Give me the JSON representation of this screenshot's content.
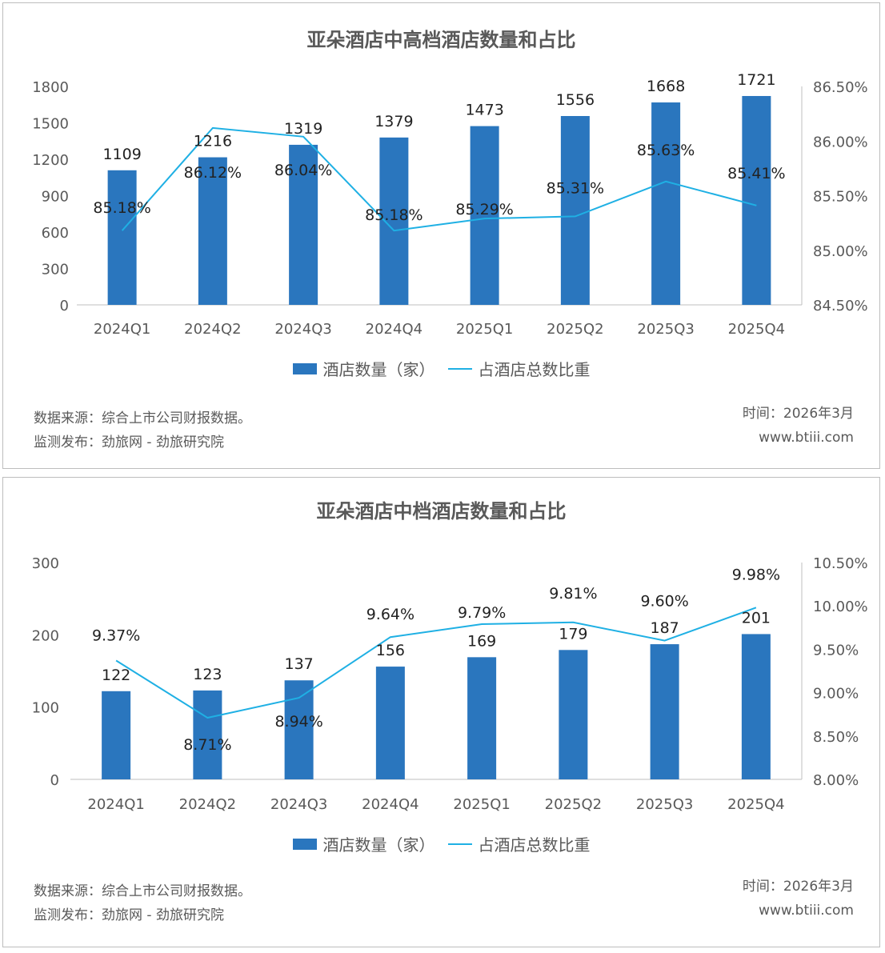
{
  "colors": {
    "bar": "#2a76be",
    "line": "#1fb0e4",
    "axis": "#bfbfbf"
  },
  "footer": {
    "source": "数据来源：综合上市公司财报数据。",
    "publisher": "监测发布：劲旅网 - 劲旅研究院",
    "time": "时间：2026年3月",
    "website": "www.btiii.com"
  },
  "chart_data": [
    {
      "type": "bar",
      "title": "亚朵酒店中高档酒店数量和占比",
      "categories": [
        "2024Q1",
        "2024Q2",
        "2024Q3",
        "2024Q4",
        "2025Q1",
        "2025Q2",
        "2025Q3",
        "2025Q4"
      ],
      "series": [
        {
          "name": "酒店数量（家）",
          "type": "bar",
          "axis": "left",
          "values": [
            1109,
            1216,
            1319,
            1379,
            1473,
            1556,
            1668,
            1721
          ],
          "labels": [
            "1109",
            "1216",
            "1319",
            "1379",
            "1473",
            "1556",
            "1668",
            "1721"
          ]
        },
        {
          "name": "占酒店总数比重",
          "type": "line",
          "axis": "right",
          "values": [
            85.18,
            86.12,
            86.04,
            85.18,
            85.29,
            85.31,
            85.63,
            85.41
          ],
          "labels": [
            "85.18%",
            "86.12%",
            "86.04%",
            "85.18%",
            "85.29%",
            "85.31%",
            "85.63%",
            "85.41%"
          ]
        }
      ],
      "y_left": {
        "min": 0,
        "max": 1800,
        "ticks": [
          "0",
          "300",
          "600",
          "900",
          "1200",
          "1500",
          "1800"
        ]
      },
      "y_right": {
        "min": 84.5,
        "max": 86.5,
        "ticks": [
          "84.50%",
          "85.00%",
          "85.50%",
          "86.00%",
          "86.50%"
        ]
      },
      "grid": false,
      "legend_position": "bottom"
    },
    {
      "type": "bar",
      "title": "亚朵酒店中档酒店数量和占比",
      "categories": [
        "2024Q1",
        "2024Q2",
        "2024Q3",
        "2024Q4",
        "2025Q1",
        "2025Q2",
        "2025Q3",
        "2025Q4"
      ],
      "series": [
        {
          "name": "酒店数量（家）",
          "type": "bar",
          "axis": "left",
          "values": [
            122,
            123,
            137,
            156,
            169,
            179,
            187,
            201
          ],
          "labels": [
            "122",
            "123",
            "137",
            "156",
            "169",
            "179",
            "187",
            "201"
          ]
        },
        {
          "name": "占酒店总数比重",
          "type": "line",
          "axis": "right",
          "values": [
            9.37,
            8.71,
            8.94,
            9.64,
            9.79,
            9.81,
            9.6,
            9.98
          ],
          "labels": [
            "9.37%",
            "8.71%",
            "8.94%",
            "9.64%",
            "9.79%",
            "9.81%",
            "9.60%",
            "9.98%"
          ]
        }
      ],
      "y_left": {
        "min": 0,
        "max": 300,
        "ticks": [
          "0",
          "100",
          "200",
          "300"
        ]
      },
      "y_right": {
        "min": 8.0,
        "max": 10.5,
        "ticks": [
          "8.00%",
          "8.50%",
          "9.00%",
          "9.50%",
          "10.00%",
          "10.50%"
        ]
      },
      "grid": false,
      "legend_position": "bottom"
    }
  ]
}
